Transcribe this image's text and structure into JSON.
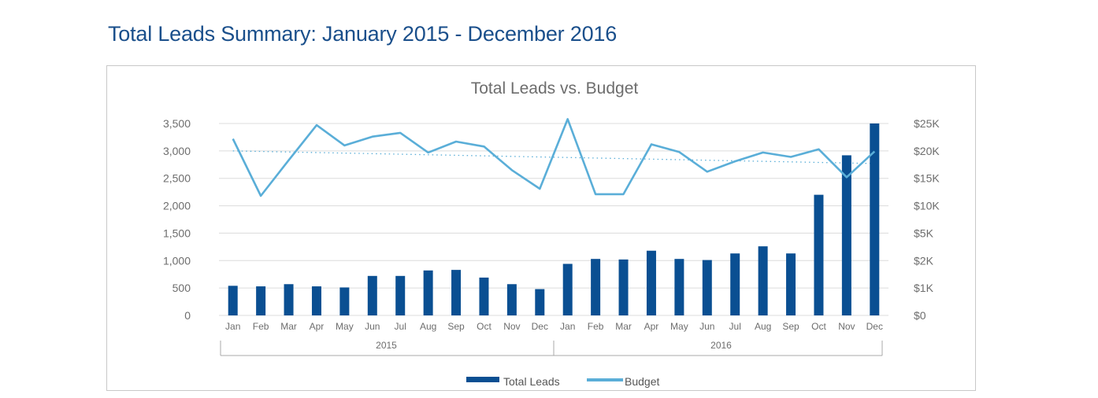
{
  "page_title": "Total Leads Summary: January 2015 - December 2016",
  "colors": {
    "bar": "#0a4f92",
    "line": "#5aaed8",
    "trend": "#5aaed8",
    "grid": "#dcdcdc",
    "text": "#6d6d6d"
  },
  "chart_data": {
    "type": "bar+line",
    "title": "Total Leads vs. Budget",
    "categories": [
      "Jan",
      "Feb",
      "Mar",
      "Apr",
      "May",
      "Jun",
      "Jul",
      "Aug",
      "Sep",
      "Oct",
      "Nov",
      "Dec",
      "Jan",
      "Feb",
      "Mar",
      "Apr",
      "May",
      "Jun",
      "Jul",
      "Aug",
      "Sep",
      "Oct",
      "Nov",
      "Dec"
    ],
    "groups": [
      {
        "label": "2015",
        "count": 12
      },
      {
        "label": "2016",
        "count": 12
      }
    ],
    "left_axis": {
      "ylim": [
        0,
        3500
      ],
      "ticks": [
        "0",
        "500",
        "1,000",
        "1,500",
        "2,000",
        "2,500",
        "3,000",
        "3,500"
      ]
    },
    "right_axis": {
      "ticks": [
        "$0",
        "$1K",
        "$2K",
        "$5K",
        "$10K",
        "$15K",
        "$20K",
        "$25K"
      ]
    },
    "grid": true,
    "legend": "bottom",
    "series": [
      {
        "name": "Total Leads",
        "type": "bar",
        "axis": "left",
        "values": [
          540,
          530,
          570,
          530,
          510,
          720,
          720,
          820,
          830,
          690,
          570,
          480,
          940,
          1030,
          1020,
          1180,
          1030,
          1010,
          1130,
          1260,
          1130,
          2200,
          2920,
          3500
        ]
      },
      {
        "name": "Budget",
        "type": "line",
        "axis": "left",
        "values": [
          3220,
          2180,
          2830,
          3470,
          3100,
          3260,
          3330,
          2970,
          3170,
          3080,
          2650,
          2310,
          3580,
          2210,
          2210,
          3120,
          2980,
          2620,
          2810,
          2970,
          2890,
          3030,
          2520,
          2990
        ]
      }
    ],
    "trendline": {
      "of": "Budget",
      "style": "dotted",
      "start": 3000,
      "end": 2770
    }
  }
}
